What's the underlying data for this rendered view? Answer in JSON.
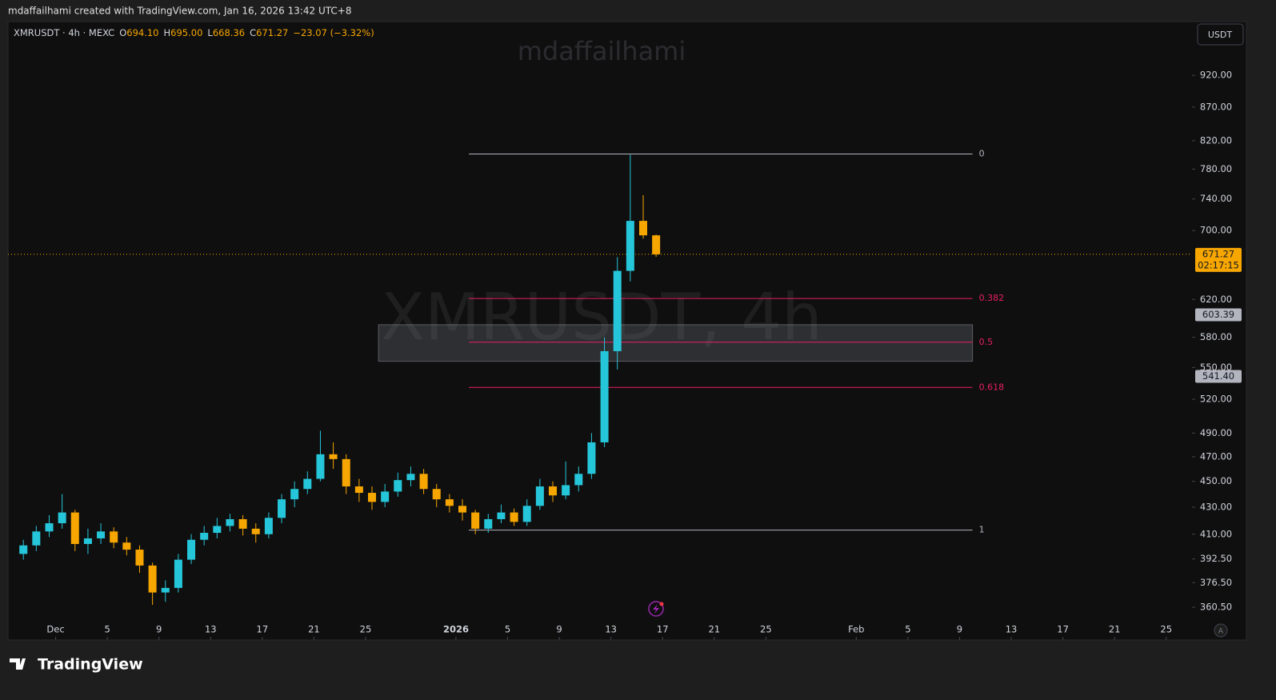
{
  "header": {
    "credit": "mdaffailhami created with TradingView.com, Jan 16, 2026 13:42 UTC+8"
  },
  "chart_data": {
    "type": "candlestick",
    "symbol": "XMRUSDT · 4h · MEXC",
    "legend": [
      {
        "key": "O",
        "value": "694.10"
      },
      {
        "key": "H",
        "value": "695.00"
      },
      {
        "key": "L",
        "value": "668.36"
      },
      {
        "key": "C",
        "value": "671.27"
      }
    ],
    "change": "−23.07 (−3.32%)",
    "watermark_top": "mdaffailhami",
    "watermark": "XMRUSDT, 4h",
    "currency": "USDT",
    "x": [
      "Nov 28",
      "Nov 29",
      "Nov 30",
      "Dec 1",
      "Dec 2",
      "Dec 3",
      "Dec 4",
      "Dec 5",
      "Dec 6",
      "Dec 7",
      "Dec 8",
      "Dec 9",
      "Dec 10",
      "Dec 11",
      "Dec 12",
      "Dec 13",
      "Dec 14",
      "Dec 15",
      "Dec 16",
      "Dec 17",
      "Dec 18",
      "Dec 19",
      "Dec 20",
      "Dec 21",
      "Dec 22",
      "Dec 23",
      "Dec 24",
      "Dec 25",
      "Dec 26",
      "Dec 27",
      "Dec 28",
      "Dec 29",
      "Dec 30",
      "Dec 31",
      "Jan 1",
      "Jan 2",
      "Jan 3",
      "Jan 4",
      "Jan 5",
      "Jan 6",
      "Jan 7",
      "Jan 8",
      "Jan 9",
      "Jan 10",
      "Jan 11",
      "Jan 12",
      "Jan 13",
      "Jan 14",
      "Jan 15",
      "Jan 16"
    ],
    "open": [
      396,
      402,
      412,
      418,
      426,
      403,
      407,
      412,
      404,
      399,
      388,
      370,
      373,
      392,
      406,
      411,
      416,
      421,
      414,
      410,
      422,
      436,
      444,
      452,
      472,
      468,
      446,
      441,
      434,
      442,
      451,
      456,
      444,
      436,
      431,
      426,
      414,
      421,
      426,
      419,
      431,
      446,
      439,
      447,
      456,
      482,
      566,
      652,
      712,
      694.1
    ],
    "high": [
      406,
      416,
      424,
      440,
      428,
      414,
      418,
      415,
      408,
      402,
      390,
      378,
      396,
      410,
      416,
      422,
      425,
      424,
      418,
      426,
      440,
      450,
      458,
      492,
      482,
      472,
      452,
      446,
      448,
      457,
      462,
      460,
      448,
      440,
      436,
      428,
      425,
      432,
      429,
      436,
      452,
      450,
      466,
      462,
      490,
      580,
      668,
      800,
      745,
      695
    ],
    "low": [
      392,
      398,
      408,
      414,
      398,
      396,
      403,
      400,
      395,
      383,
      362,
      364,
      370,
      389,
      402,
      407,
      412,
      409,
      404,
      407,
      418,
      430,
      440,
      450,
      460,
      440,
      434,
      428,
      430,
      438,
      446,
      440,
      430,
      426,
      420,
      410,
      411,
      418,
      416,
      416,
      428,
      434,
      436,
      442,
      452,
      478,
      548,
      640,
      690,
      668.36
    ],
    "close": [
      402,
      412,
      418,
      426,
      403,
      407,
      412,
      404,
      399,
      388,
      370,
      373,
      392,
      406,
      411,
      416,
      421,
      414,
      410,
      422,
      436,
      444,
      452,
      472,
      468,
      446,
      441,
      434,
      442,
      451,
      456,
      444,
      436,
      431,
      426,
      414,
      421,
      426,
      419,
      431,
      446,
      439,
      447,
      456,
      482,
      566,
      652,
      712,
      694.1,
      671.27
    ],
    "up_color": "#26c6da",
    "down_color": "#f7a600",
    "log_scale": true,
    "ylim": [
      352,
      1010
    ],
    "yticks": [
      {
        "value": 360.5,
        "label": "360.50"
      },
      {
        "value": 376.5,
        "label": "376.50"
      },
      {
        "value": 392.5,
        "label": "392.50"
      },
      {
        "value": 410,
        "label": "410.00"
      },
      {
        "value": 430,
        "label": "430.00"
      },
      {
        "value": 450,
        "label": "450.00"
      },
      {
        "value": 470,
        "label": "470.00"
      },
      {
        "value": 490,
        "label": "490.00"
      },
      {
        "value": 520,
        "label": "520.00"
      },
      {
        "value": 550,
        "label": "550.00"
      },
      {
        "value": 580,
        "label": "580.00"
      },
      {
        "value": 620,
        "label": "620.00"
      },
      {
        "value": 700,
        "label": "700.00"
      },
      {
        "value": 740,
        "label": "740.00"
      },
      {
        "value": 780,
        "label": "780.00"
      },
      {
        "value": 820,
        "label": "820.00"
      },
      {
        "value": 870,
        "label": "870.00"
      },
      {
        "value": 920,
        "label": "920.00"
      }
    ],
    "xlim": [
      "Nov 27",
      "Feb 27"
    ],
    "xticks": [
      {
        "value": "Dec 1",
        "label": "Dec"
      },
      {
        "value": "Dec 5",
        "label": "5"
      },
      {
        "value": "Dec 9",
        "label": "9"
      },
      {
        "value": "Dec 13",
        "label": "13"
      },
      {
        "value": "Dec 17",
        "label": "17"
      },
      {
        "value": "Dec 21",
        "label": "21"
      },
      {
        "value": "Dec 25",
        "label": "25"
      },
      {
        "value": "Jan 1",
        "label": "2026"
      },
      {
        "value": "Jan 5",
        "label": "5"
      },
      {
        "value": "Jan 9",
        "label": "9"
      },
      {
        "value": "Jan 13",
        "label": "13"
      },
      {
        "value": "Jan 17",
        "label": "17"
      },
      {
        "value": "Jan 21",
        "label": "21"
      },
      {
        "value": "Jan 25",
        "label": "25"
      },
      {
        "value": "Feb 1",
        "label": "Feb"
      },
      {
        "value": "Feb 5",
        "label": "5"
      },
      {
        "value": "Feb 9",
        "label": "9"
      },
      {
        "value": "Feb 13",
        "label": "13"
      },
      {
        "value": "Feb 17",
        "label": "17"
      },
      {
        "value": "Feb 21",
        "label": "21"
      },
      {
        "value": "Feb 25",
        "label": "25"
      }
    ],
    "last_price": {
      "value": 671.27,
      "label": "671.27",
      "countdown": "02:17:15",
      "color": "#f7a600"
    },
    "price_labels": [
      {
        "value": 603.39,
        "label": "603.39"
      },
      {
        "value": 541.4,
        "label": "541.40"
      }
    ],
    "fib": {
      "start": "Jan 2",
      "end": "Feb 10",
      "levels": [
        {
          "ratio": 0,
          "value": 801,
          "color": "#b2b5be"
        },
        {
          "ratio": 0.382,
          "value": 621,
          "color": "#e91e63"
        },
        {
          "ratio": 0.5,
          "value": 575,
          "color": "#e91e63"
        },
        {
          "ratio": 0.618,
          "value": 531,
          "color": "#e91e63"
        },
        {
          "ratio": 1,
          "value": 413,
          "color": "#b2b5be"
        }
      ]
    },
    "zone": {
      "start": "Dec 26",
      "end": "Feb 10",
      "top": 593,
      "bottom": 556
    }
  },
  "footer": {
    "brand": "TradingView",
    "auto": "A"
  }
}
